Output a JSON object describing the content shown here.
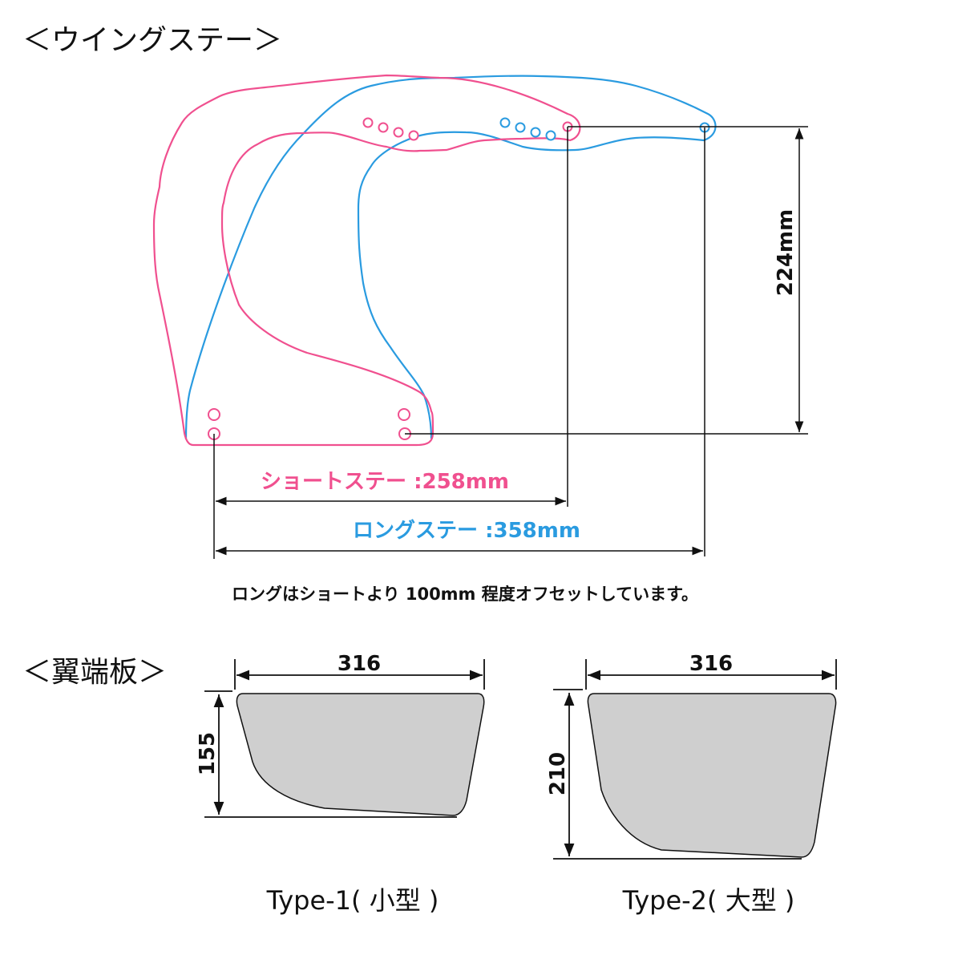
{
  "colors": {
    "short_stay": "#f0508f",
    "long_stay": "#2a9be0",
    "plate_fill": "#cfcfcf",
    "line": "#111111"
  },
  "wing_stay": {
    "heading": "＜ウイングステー＞",
    "height_label": "224mm",
    "short_label": "ショートステー :258mm",
    "long_label": "ロングステー :358mm",
    "note": "ロングはショートより 100mm 程度オフセットしています。"
  },
  "end_plates": {
    "heading": "＜翼端板＞",
    "type1": {
      "width_label": "316",
      "height_label": "155",
      "caption": "Type-1( 小型 )"
    },
    "type2": {
      "width_label": "316",
      "height_label": "210",
      "caption": "Type-2( 大型 )"
    }
  }
}
